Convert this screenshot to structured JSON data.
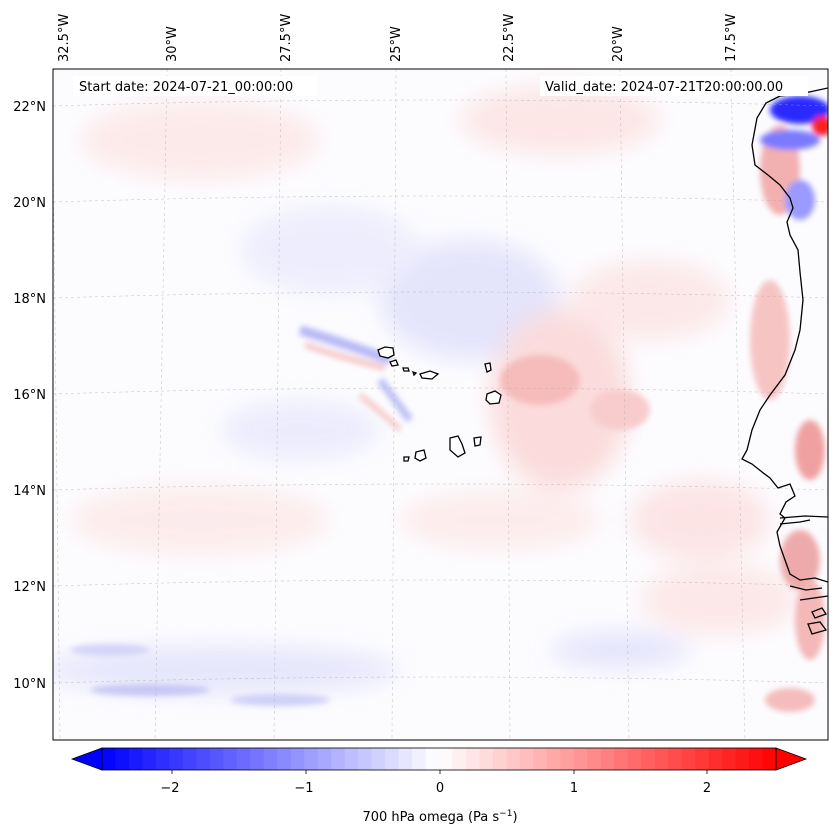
{
  "map": {
    "start_date_text": "Start date: 2024-07-21_00:00:00",
    "valid_date_text": "Valid_date: 2024-07-21T20:00:00.00",
    "lon_labels": [
      "32.5°W",
      "30°W",
      "27.5°W",
      "25°W",
      "22.5°W",
      "20°W",
      "17.5°W"
    ],
    "lat_labels": [
      "22°N",
      "20°N",
      "18°N",
      "16°N",
      "14°N",
      "12°N",
      "10°N"
    ]
  },
  "colorbar": {
    "tick_labels": [
      "−2",
      "−1",
      "0",
      "1",
      "2"
    ],
    "label_main": "700 hPa omega (Pa s",
    "label_exp": "−1",
    "label_close": ")",
    "min_color": "#0000ff",
    "mid_color": "#ffffff",
    "max_color": "#ff0000"
  }
}
